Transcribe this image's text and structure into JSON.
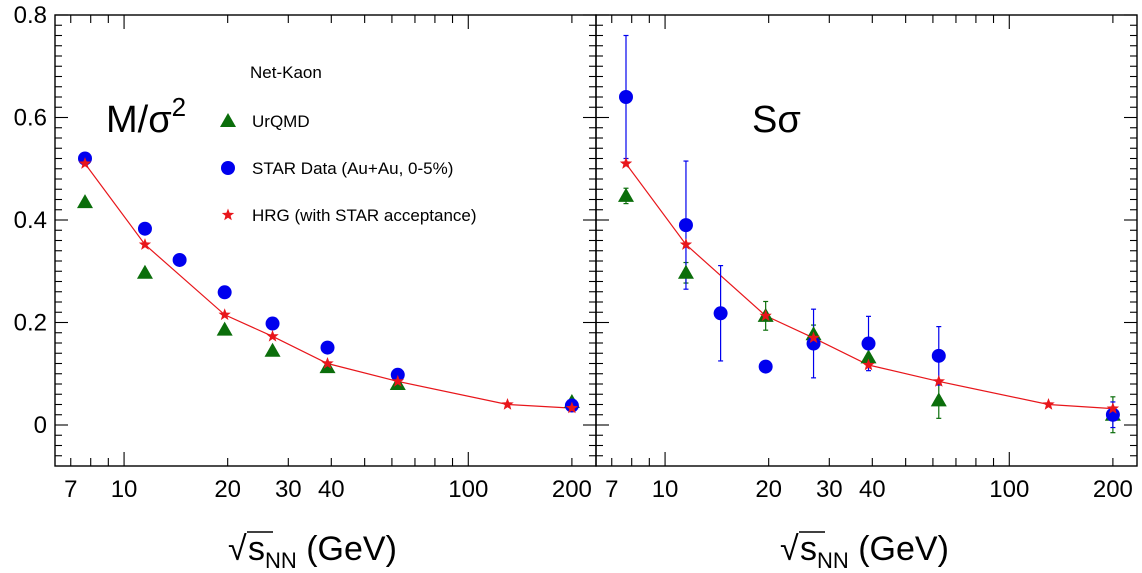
{
  "chart_data": [
    {
      "type": "scatter",
      "panel_label": "M/σ",
      "panel_label_sup": "2",
      "xlabel": "√s_NN (GeV)",
      "ylabel": "",
      "xscale": "log",
      "xlim": [
        6.3,
        235
      ],
      "ylim": [
        -0.08,
        0.8
      ],
      "xticks": [
        7,
        10,
        20,
        30,
        40,
        100,
        200
      ],
      "yticks": [
        0,
        0.2,
        0.4,
        0.6,
        0.8
      ],
      "legend_title": "Net-Kaon",
      "legend_position": "top-center",
      "series": [
        {
          "name": "UrQMD",
          "marker": "triangle",
          "color": "#0b6e0b",
          "x": [
            7.7,
            11.5,
            19.6,
            27,
            39,
            62.4,
            200
          ],
          "y": [
            0.435,
            0.297,
            0.186,
            0.145,
            0.113,
            0.08,
            0.045
          ]
        },
        {
          "name": "STAR Data (Au+Au, 0-5%)",
          "marker": "circle",
          "color": "#0000ee",
          "x": [
            7.7,
            11.5,
            14.5,
            19.6,
            27,
            39,
            62.4,
            200
          ],
          "y": [
            0.52,
            0.383,
            0.322,
            0.259,
            0.198,
            0.151,
            0.098,
            0.038
          ]
        },
        {
          "name": "HRG (with STAR acceptance)",
          "marker": "star",
          "color": "#e8161b",
          "line": true,
          "x": [
            7.7,
            11.5,
            19.6,
            27,
            39,
            62.4,
            130,
            200
          ],
          "y": [
            0.51,
            0.352,
            0.215,
            0.173,
            0.12,
            0.085,
            0.04,
            0.033
          ]
        }
      ]
    },
    {
      "type": "scatter",
      "panel_label": "Sσ",
      "panel_label_sup": "",
      "xlabel": "√s_NN (GeV)",
      "ylabel": "",
      "xscale": "log",
      "xlim": [
        6.3,
        235
      ],
      "ylim": [
        -0.08,
        0.8
      ],
      "xticks": [
        7,
        10,
        20,
        30,
        40,
        100,
        200
      ],
      "yticks": [
        0,
        0.2,
        0.4,
        0.6,
        0.8
      ],
      "series": [
        {
          "name": "UrQMD",
          "marker": "triangle",
          "color": "#0b6e0b",
          "x": [
            7.7,
            11.5,
            19.6,
            27,
            39,
            62.4,
            200
          ],
          "y": [
            0.447,
            0.297,
            0.213,
            0.177,
            0.132,
            0.048,
            0.02
          ],
          "err": [
            0.015,
            0.02,
            0.028,
            0.018,
            0.018,
            0.035,
            0.035
          ]
        },
        {
          "name": "STAR Data (Au+Au, 0-5%)",
          "marker": "circle",
          "color": "#0000ee",
          "x": [
            7.7,
            11.5,
            14.5,
            19.6,
            27,
            39,
            62.4,
            200
          ],
          "y": [
            0.64,
            0.39,
            0.218,
            0.114,
            0.159,
            0.159,
            0.135,
            0.02
          ],
          "err": [
            0.12,
            0.125,
            0.093,
            0.0,
            0.067,
            0.053,
            0.057,
            0.025
          ]
        },
        {
          "name": "HRG (with STAR acceptance)",
          "marker": "star",
          "color": "#e8161b",
          "line": true,
          "x": [
            7.7,
            11.5,
            19.6,
            27,
            39,
            62.4,
            130,
            200
          ],
          "y": [
            0.51,
            0.352,
            0.213,
            0.17,
            0.117,
            0.085,
            0.04,
            0.032
          ]
        }
      ]
    }
  ],
  "x_tick_labels": [
    "7",
    "10",
    "20",
    "30",
    "40",
    "100",
    "200"
  ],
  "y_tick_labels": [
    "0",
    "0.2",
    "0.4",
    "0.6",
    "0.8"
  ],
  "x_axis_label": {
    "root": "√",
    "s": "s",
    "sub": "NN",
    "unit": " (GeV)"
  }
}
